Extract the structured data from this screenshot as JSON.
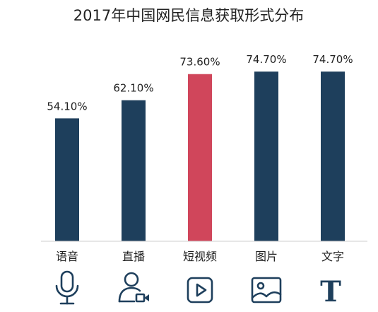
{
  "chart_data": {
    "type": "bar",
    "title": "2017年中国网民信息获取形式分布",
    "xlabel": "",
    "ylabel": "",
    "categories": [
      "语音",
      "直播",
      "短视频",
      "图片",
      "文字"
    ],
    "values": [
      54.1,
      62.1,
      73.6,
      74.7,
      74.7
    ],
    "value_labels": [
      "54.10%",
      "62.10%",
      "73.60%",
      "74.70%",
      "74.70%"
    ],
    "ylim": [
      0,
      100
    ],
    "grid": false,
    "legend": "none",
    "bar_color": "#1e3f5c",
    "highlight_color": "#d0465b",
    "highlight_index": 2
  },
  "icons": [
    "microphone-icon",
    "live-stream-user-icon",
    "video-play-icon",
    "image-icon",
    "text-t-icon"
  ],
  "icon_text": "T"
}
